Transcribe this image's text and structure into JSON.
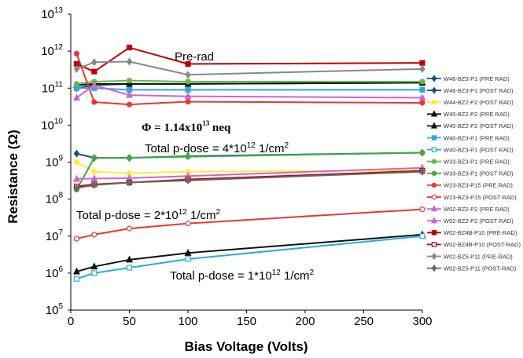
{
  "chart_data": {
    "type": "line",
    "xlabel": "Bias Voltage (Volts)",
    "ylabel": "Resistance (Ω)",
    "xlim": [
      0,
      300
    ],
    "ylim": [
      100000,
      10000000000000
    ],
    "yscale": "log",
    "x_ticks": [
      "0",
      "50",
      "100",
      "150",
      "200",
      "250",
      "300"
    ],
    "y_ticks": [
      {
        "base": "10",
        "exp": "5"
      },
      {
        "base": "10",
        "exp": "6"
      },
      {
        "base": "10",
        "exp": "7"
      },
      {
        "base": "10",
        "exp": "8"
      },
      {
        "base": "10",
        "exp": "9"
      },
      {
        "base": "10",
        "exp": "10"
      },
      {
        "base": "10",
        "exp": "11"
      },
      {
        "base": "10",
        "exp": "12"
      },
      {
        "base": "10",
        "exp": "13"
      }
    ],
    "legend_position": "right",
    "grid": false,
    "annotations": {
      "pre_rad": "Pre-rad",
      "phi": "Φ = 1.14x10",
      "phi_exp": "13",
      "phi_unit": " neq",
      "dose4_pre": "Total p-dose = 4*10",
      "dose4_exp": "12",
      "dose4_unit": " 1/cm",
      "dose4_sq": "2",
      "dose2_pre": "Total p-dose = 2*10",
      "dose2_exp": "12",
      "dose2_unit": " 1/cm",
      "dose2_sq": "2",
      "dose1_pre": "Total p-dose = 1*10",
      "dose1_exp": "12",
      "dose1_unit": " 1/cm",
      "dose1_sq": "2"
    },
    "series": [
      {
        "name": "W46-BZ3-P1 (PRE RAD)",
        "color": "#1f4e79",
        "marker": "diamond",
        "filled": true,
        "x": [
          5,
          20,
          50,
          100,
          300
        ],
        "y": [
          1700000000.0,
          1300000000.0,
          1300000000.0,
          1450000000.0,
          1800000000.0
        ]
      },
      {
        "name": "W46-BZ3-P1 (POST RAD)",
        "color": "#1f4e79",
        "marker": "diamond",
        "filled": true,
        "x": [
          5,
          20,
          50,
          100,
          300
        ],
        "y": [
          100000000000.0,
          120000000000.0,
          130000000000.0,
          130000000000.0,
          140000000000.0
        ]
      },
      {
        "name": "W44-BZ2-P2 (POST RAD)",
        "color": "#ffeb3b",
        "marker": "circle",
        "filled": true,
        "x": [
          5,
          20,
          50,
          100,
          300
        ],
        "y": [
          1000000000.0,
          550000000.0,
          500000000.0,
          550000000.0,
          600000000.0
        ]
      },
      {
        "name": "W40-BZ2-P2 (PRE RAD)",
        "color": "#111111",
        "marker": "triangle",
        "filled": true,
        "x": [
          5,
          20,
          50,
          100,
          300
        ],
        "y": [
          120000000000.0,
          130000000000.0,
          130000000000.0,
          130000000000.0,
          140000000000.0
        ]
      },
      {
        "name": "W40-BZ2-P2 (POST RAD)",
        "color": "#111111",
        "marker": "triangle",
        "filled": true,
        "x": [
          5,
          20,
          50,
          100,
          300
        ],
        "y": [
          1100000.0,
          1500000.0,
          2300000.0,
          3500000.0,
          11000000.0
        ]
      },
      {
        "name": "W40-BZ3-P1 (PRE RAD)",
        "color": "#29abe2",
        "marker": "square",
        "filled": true,
        "x": [
          5,
          20,
          50,
          100,
          300
        ],
        "y": [
          100000000000.0,
          100000000000.0,
          90000000000.0,
          90000000000.0,
          90000000000.0
        ]
      },
      {
        "name": "W40-BZ3-P1 (POST RAD)",
        "color": "#29abe2",
        "marker": "square",
        "filled": false,
        "x": [
          5,
          20,
          50,
          100,
          300
        ],
        "y": [
          700000.0,
          1000000.0,
          1400000.0,
          2400000.0,
          10000000.0
        ]
      },
      {
        "name": "W33-BZ3-P1 (PRE RAD)",
        "color": "#66bb44",
        "marker": "circle",
        "filled": true,
        "x": [
          5,
          20,
          50,
          100,
          300
        ],
        "y": [
          130000000000.0,
          150000000000.0,
          160000000000.0,
          150000000000.0,
          150000000000.0
        ]
      },
      {
        "name": "W33-BZ3-P1 (POST RAD)",
        "color": "#44a845",
        "marker": "circle",
        "filled": true,
        "x": [
          5,
          20,
          50,
          100,
          300
        ],
        "y": [
          180000000.0,
          1300000000.0,
          1300000000.0,
          1400000000.0,
          1800000000.0
        ]
      },
      {
        "name": "W23-BZ3-P15 (PRE RAD)",
        "color": "#e53935",
        "marker": "circle",
        "filled": true,
        "x": [
          5,
          20,
          50,
          100,
          300
        ],
        "y": [
          850000000000.0,
          42000000000.0,
          36000000000.0,
          43000000000.0,
          40000000000.0
        ]
      },
      {
        "name": "W23-BZ3-P15 (POST RAD)",
        "color": "#e53935",
        "marker": "circle",
        "filled": false,
        "x": [
          5,
          20,
          50,
          100,
          300
        ],
        "y": [
          8500000.0,
          11000000.0,
          16000000.0,
          22000000.0,
          53000000.0
        ]
      },
      {
        "name": "W02-BZ2-P2 (PRE RAD)",
        "color": "#cc66cc",
        "marker": "triangle",
        "filled": true,
        "x": [
          5,
          20,
          50,
          100,
          300
        ],
        "y": [
          55000000000.0,
          120000000000.0,
          65000000000.0,
          60000000000.0,
          55000000000.0
        ]
      },
      {
        "name": "W02-BZ2-P2 (POST RAD)",
        "color": "#cc66cc",
        "marker": "triangle",
        "filled": true,
        "x": [
          5,
          20,
          50,
          100,
          300
        ],
        "y": [
          350000000.0,
          360000000.0,
          370000000.0,
          420000000.0,
          700000000.0
        ]
      },
      {
        "name": "W02-BZ4B-P10 (PRE-RAD)",
        "color": "#c00000",
        "marker": "square",
        "filled": true,
        "x": [
          5,
          20,
          50,
          100,
          300
        ],
        "y": [
          450000000000.0,
          280000000000.0,
          1250000000000.0,
          450000000000.0,
          480000000000.0
        ]
      },
      {
        "name": "W02-BZ4B-P10 (POST-RAD)",
        "color": "#c00000",
        "marker": "square",
        "filled": false,
        "x": [
          5,
          20,
          50,
          100,
          300
        ],
        "y": [
          220000000.0,
          250000000.0,
          280000000.0,
          340000000.0,
          580000000.0
        ]
      },
      {
        "name": "W02-BZ5-P11 (PRE-RAD)",
        "color": "#888888",
        "marker": "diamond",
        "filled": true,
        "x": [
          5,
          20,
          50,
          100,
          300
        ],
        "y": [
          330000000000.0,
          500000000000.0,
          520000000000.0,
          230000000000.0,
          330000000000.0
        ]
      },
      {
        "name": "W02-BZ5-P11 (POST-RAD)",
        "color": "#666666",
        "marker": "diamond",
        "filled": true,
        "x": [
          5,
          20,
          50,
          100,
          300
        ],
        "y": [
          200000000.0,
          240000000.0,
          280000000.0,
          320000000.0,
          550000000.0
        ]
      }
    ]
  }
}
